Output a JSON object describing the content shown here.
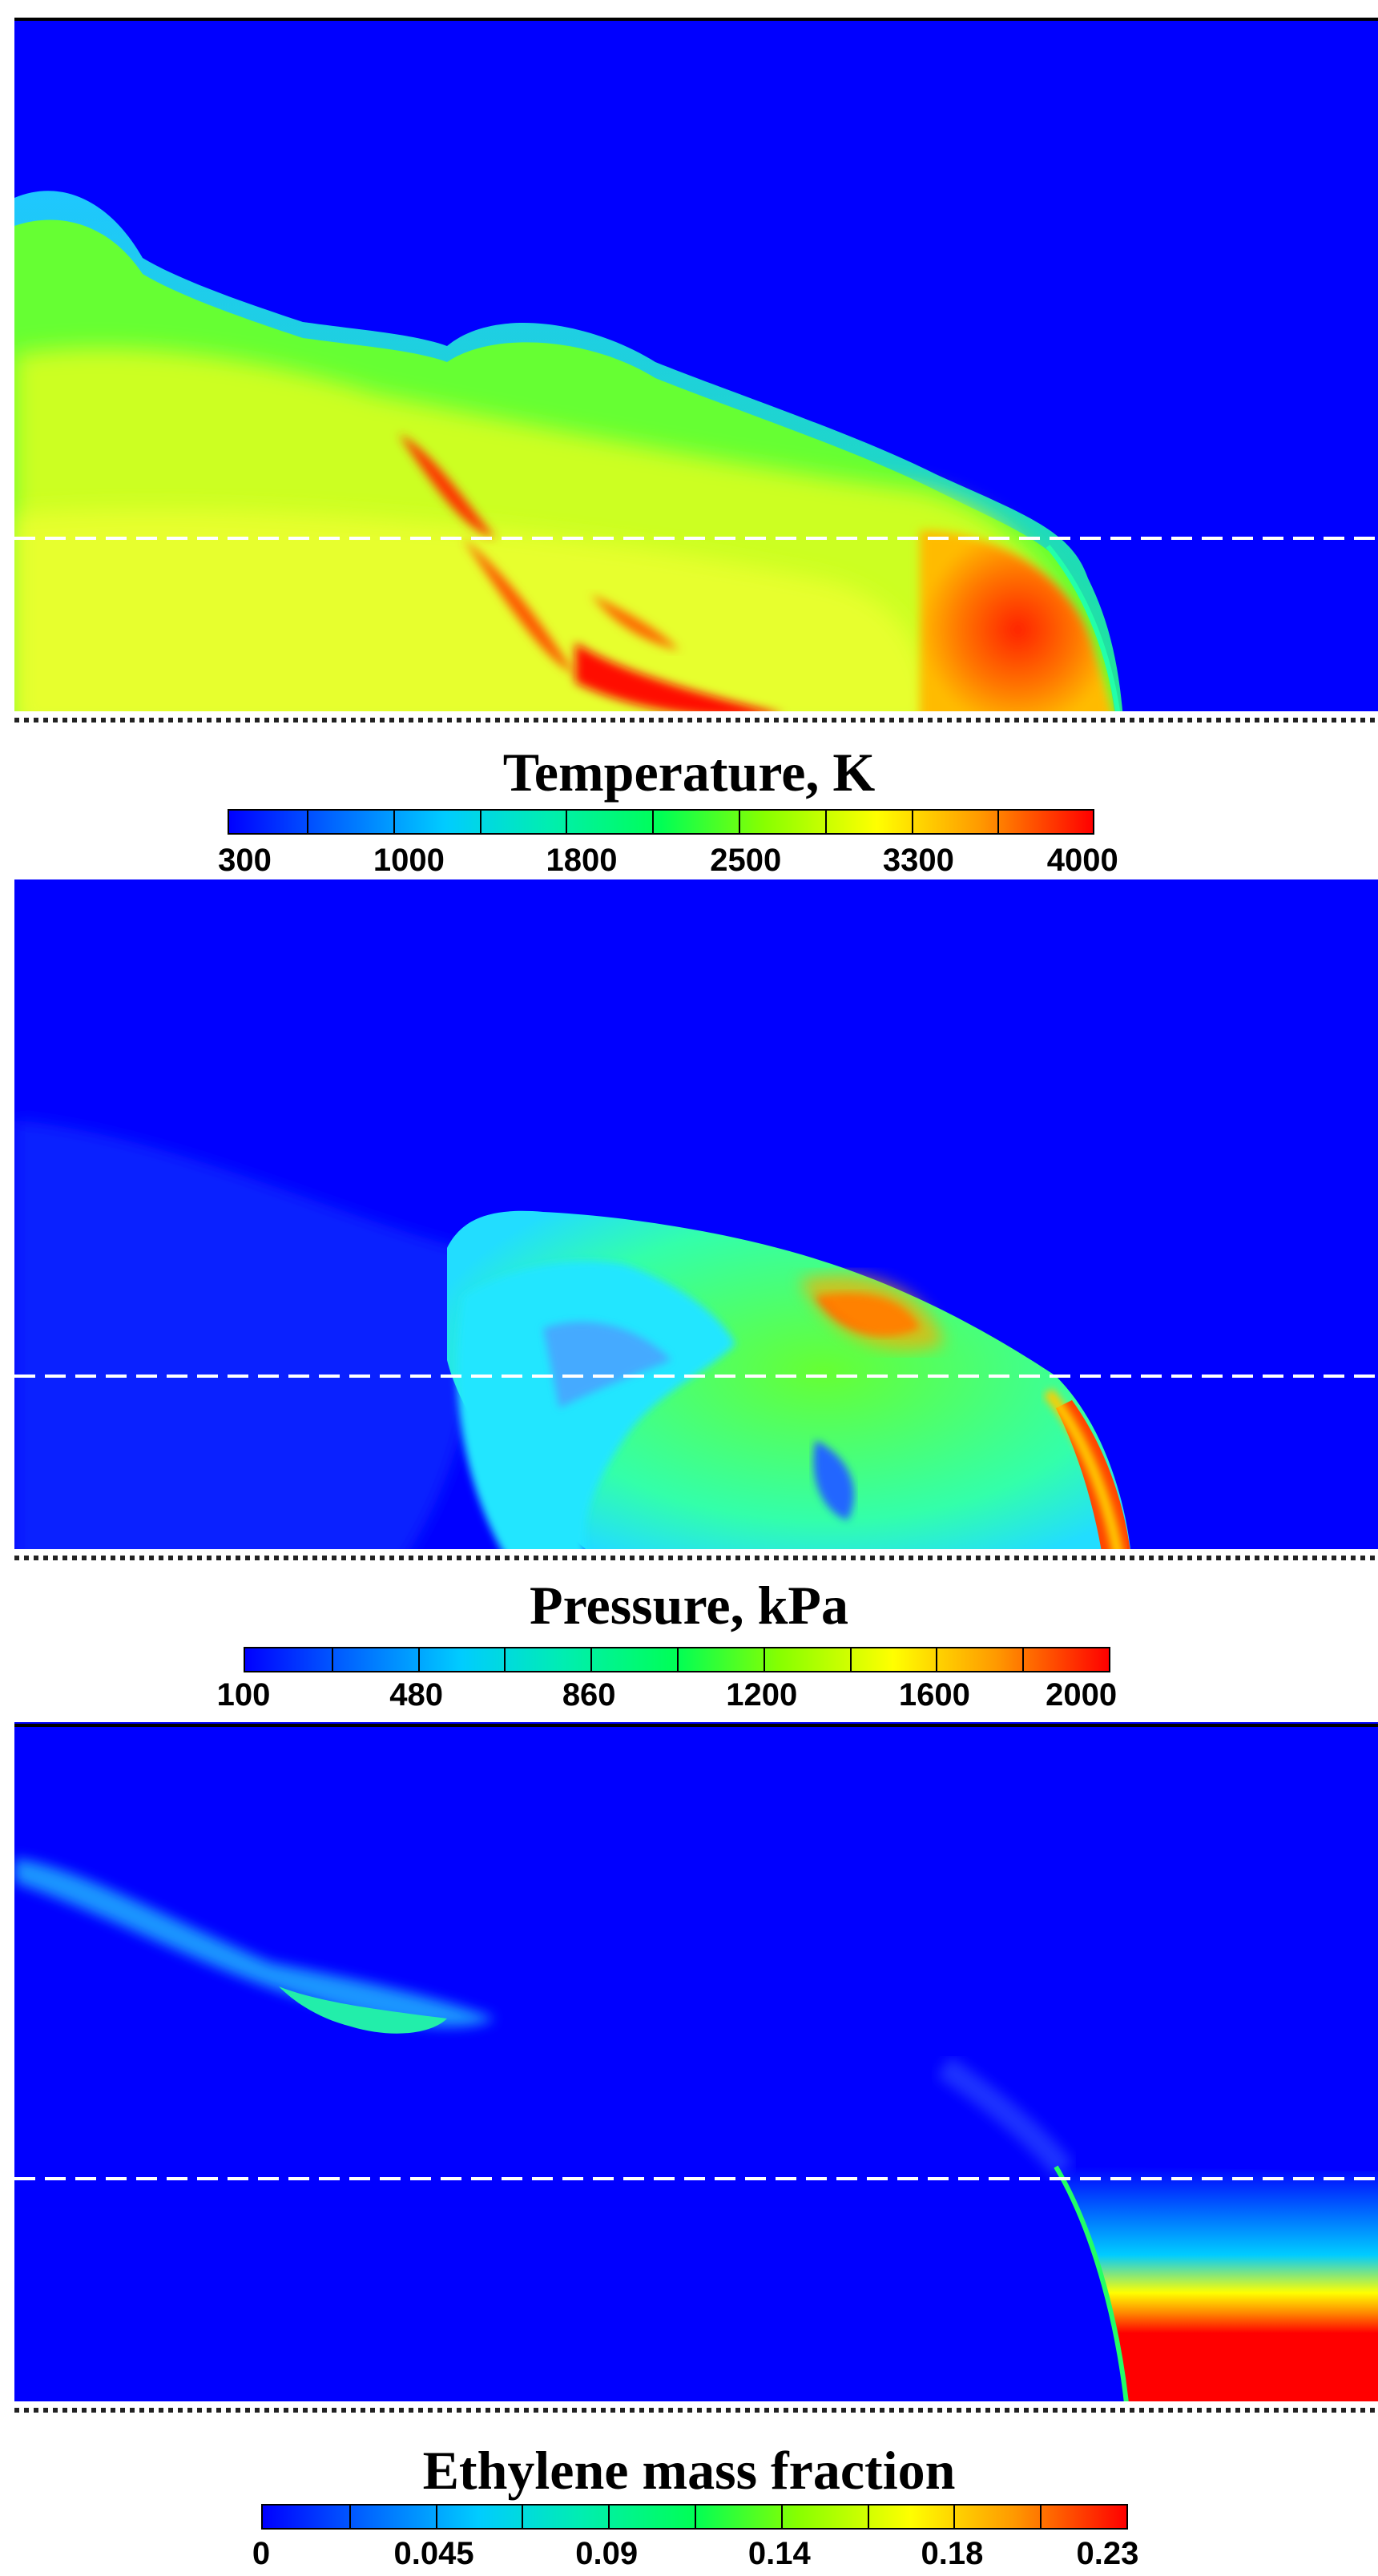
{
  "panels": [
    {
      "title": "Temperature, K",
      "colorbar_labels": [
        "300",
        "1000",
        "1800",
        "2500",
        "3300",
        "4000"
      ],
      "colors": [
        "#0000ff",
        "#00ccff",
        "#00ff55",
        "#ffff00",
        "#ff0000"
      ]
    },
    {
      "title": "Pressure, kPa",
      "colorbar_labels": [
        "100",
        "480",
        "860",
        "1200",
        "1600",
        "2000"
      ],
      "colors": [
        "#0000ff",
        "#00ccff",
        "#00ff55",
        "#ffff00",
        "#ff0000"
      ]
    },
    {
      "title": "Ethylene mass fraction",
      "colorbar_labels": [
        "0",
        "0.045",
        "0.09",
        "0.14",
        "0.18",
        "0.23"
      ],
      "colors": [
        "#0000ff",
        "#00ccff",
        "#00ff55",
        "#ffff00",
        "#ff0000"
      ]
    }
  ]
}
